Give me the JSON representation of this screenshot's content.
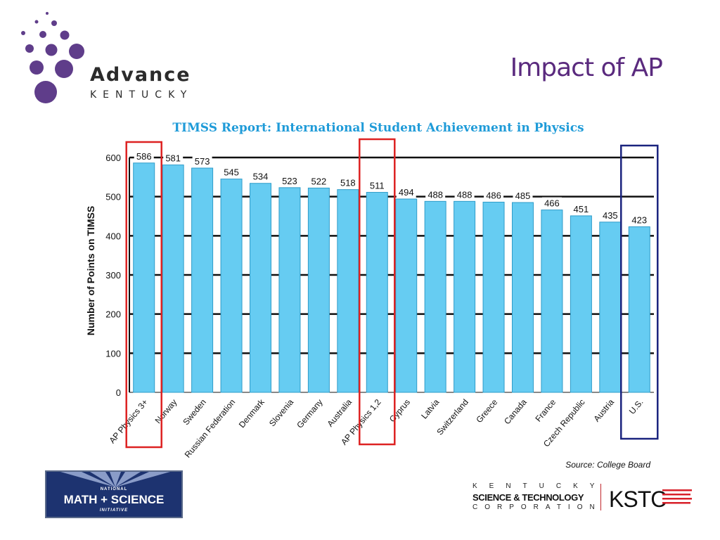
{
  "slide": {
    "title": "Impact of AP",
    "source": "Source: College Board"
  },
  "logos": {
    "advance_line1": "Advance",
    "advance_line2": "KENTUCKY",
    "nmsi_line1": "NATIONAL",
    "nmsi_line2": "MATH + SCIENCE",
    "nmsi_line3": "INITIATIVE",
    "kstc_line1": "KENTUCKY",
    "kstc_line2": "SCIENCE & TECHNOLOGY",
    "kstc_line3": "CORPORATION",
    "kstc_abbr": "KSTC"
  },
  "colors": {
    "bar": "#66ccf2",
    "title_purple": "#5a2a7e",
    "chart_title_blue": "#1f9bd8",
    "highlight_red": "#dd2222",
    "highlight_navy": "#1a237e"
  },
  "chart_data": {
    "type": "bar",
    "title": "TIMSS Report: International Student Achievement in Physics",
    "ylabel": "Number of Points on TIMSS",
    "xlabel": "",
    "ylim": [
      0,
      600
    ],
    "yticks": [
      0,
      100,
      200,
      300,
      400,
      500,
      600
    ],
    "grid": true,
    "categories": [
      "AP Physics 3+",
      "Norway",
      "Sweden",
      "Russian Federation",
      "Denmark",
      "Slovenia",
      "Germany",
      "Australia",
      "AP Physics 1,2",
      "Cyprus",
      "Latvia",
      "Switzerland",
      "Greece",
      "Canada",
      "France",
      "Czech Republic",
      "Austria",
      "U.S."
    ],
    "values": [
      586,
      581,
      573,
      545,
      534,
      523,
      522,
      518,
      511,
      494,
      488,
      488,
      486,
      485,
      466,
      451,
      435,
      423
    ],
    "highlighted": [
      {
        "category": "AP Physics 3+",
        "color": "red"
      },
      {
        "category": "AP Physics 1,2",
        "color": "red"
      },
      {
        "category": "U.S.",
        "color": "navy"
      }
    ]
  }
}
